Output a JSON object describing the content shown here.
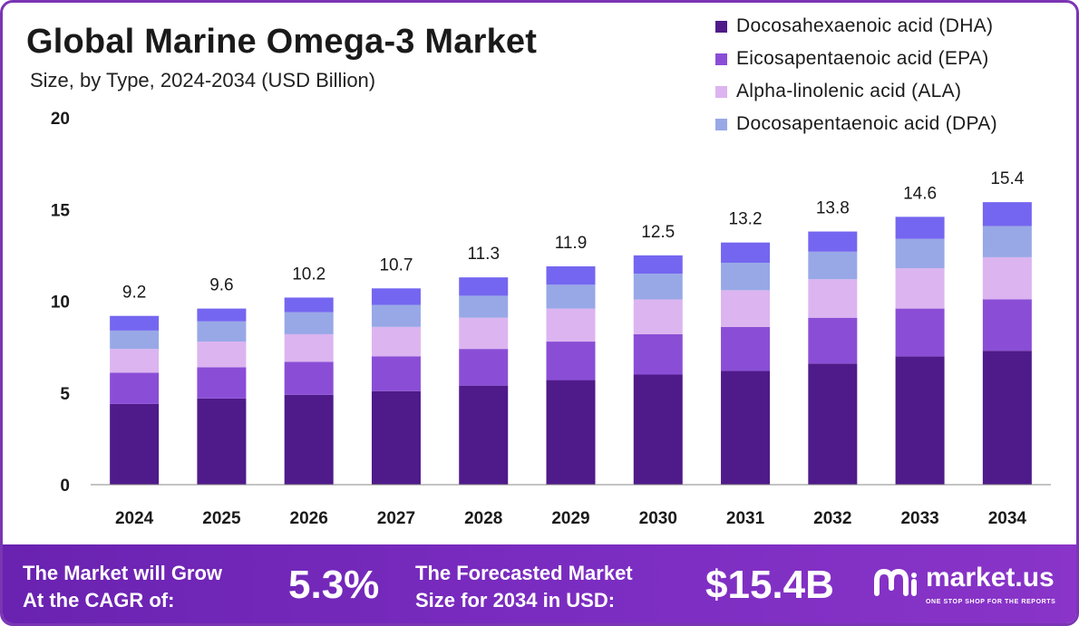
{
  "colors": {
    "frame": "#7a35b4",
    "footer": "#7a2cc0",
    "axis": "#888888",
    "dha": "#4f1a8a",
    "epa": "#8a4ed6",
    "ala": "#dcb4f0",
    "dpa": "#98a8e6",
    "top": "#7466f0"
  },
  "chart_data": {
    "type": "bar",
    "stacked": true,
    "title": "Global Marine Omega-3 Market",
    "subtitle": "Size, by Type, 2024-2034 (USD Billion)",
    "xlabel": "",
    "ylabel": "",
    "ylim": [
      0,
      20
    ],
    "yticks": [
      "0",
      "5",
      "10",
      "15",
      "20"
    ],
    "grid": false,
    "legend_position": "top-right",
    "categories": [
      "2024",
      "2025",
      "2026",
      "2027",
      "2028",
      "2029",
      "2030",
      "2031",
      "2032",
      "2033",
      "2034"
    ],
    "totals": [
      9.2,
      9.6,
      10.2,
      10.7,
      11.3,
      11.9,
      12.5,
      13.2,
      13.8,
      14.6,
      15.4
    ],
    "total_labels": [
      "9.2",
      "9.6",
      "10.2",
      "10.7",
      "11.3",
      "11.9",
      "12.5",
      "13.2",
      "13.8",
      "14.6",
      "15.4"
    ],
    "series": [
      {
        "name": "Docosahexaenoic acid (DHA)",
        "color": "#4f1a8a",
        "values": [
          4.4,
          4.7,
          4.9,
          5.1,
          5.4,
          5.7,
          6.0,
          6.2,
          6.6,
          7.0,
          7.3
        ]
      },
      {
        "name": "Eicosapentaenoic acid (EPA)",
        "color": "#8a4ed6",
        "values": [
          1.7,
          1.7,
          1.8,
          1.9,
          2.0,
          2.1,
          2.2,
          2.4,
          2.5,
          2.6,
          2.8
        ]
      },
      {
        "name": "Alpha-linolenic acid (ALA)",
        "color": "#dcb4f0",
        "values": [
          1.3,
          1.4,
          1.5,
          1.6,
          1.7,
          1.8,
          1.9,
          2.0,
          2.1,
          2.2,
          2.3
        ]
      },
      {
        "name": "Docosapentaenoic acid (DPA)",
        "color": "#98a8e6",
        "values": [
          1.0,
          1.1,
          1.2,
          1.2,
          1.2,
          1.3,
          1.4,
          1.5,
          1.5,
          1.6,
          1.7
        ]
      },
      {
        "name": "",
        "color": "#7466f0",
        "values": [
          0.8,
          0.7,
          0.8,
          0.9,
          1.0,
          1.0,
          1.0,
          1.1,
          1.1,
          1.2,
          1.3
        ]
      }
    ]
  },
  "footer": {
    "grow_line1": "The Market will Grow",
    "grow_line2": "At the CAGR of:",
    "cagr": "5.3%",
    "size_line1": "The Forecasted Market",
    "size_line2": "Size for 2034 in USD:",
    "value": "$15.4B",
    "brand": "market.us",
    "tagline": "ONE STOP SHOP FOR THE REPORTS"
  }
}
